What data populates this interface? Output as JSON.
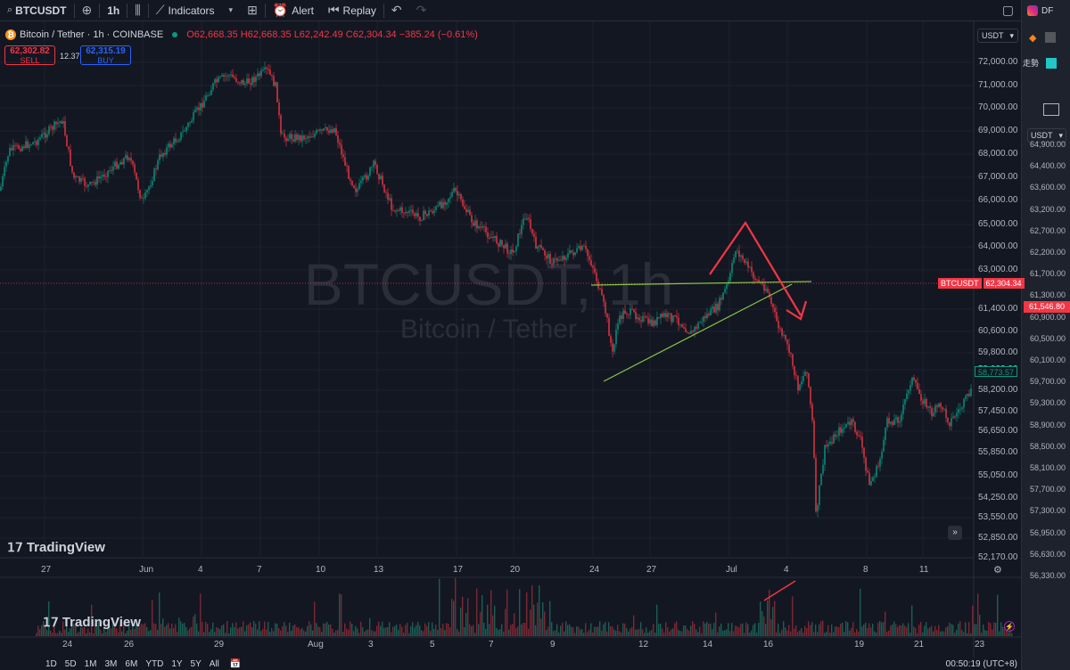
{
  "toolbar": {
    "symbol": "BTCUSDT",
    "interval": "1h",
    "indicators": "Indicators",
    "alert": "Alert",
    "replay": "Replay"
  },
  "legend": {
    "title": "Bitcoin / Tether · 1h · COINBASE",
    "ohlc": "O62,668.35 H62,668.35 L62,242.49 C62,304.34 −385.24 (−0.61%)"
  },
  "trade": {
    "sell_price": "62,302.82",
    "sell_label": "SELL",
    "spread": "12.37",
    "buy_price": "62,315.19",
    "buy_label": "BUY"
  },
  "watermark": {
    "symbol": "BTCUSDT, 1h",
    "name": "Bitcoin / Tether"
  },
  "currency": "USDT",
  "price_axis": [
    "72,000.00",
    "71,000.00",
    "70,000.00",
    "69,000.00",
    "68,000.00",
    "67,000.00",
    "66,000.00",
    "65,000.00",
    "64,000.00",
    "63,000.00",
    "61,400.00",
    "60,600.00",
    "59,800.00",
    "59,000.00",
    "58,200.00",
    "57,450.00",
    "56,650.00",
    "55,850.00",
    "55,050.00",
    "54,250.00",
    "53,550.00",
    "52,850.00",
    "52,170.00"
  ],
  "last_price": {
    "symbol": "BTCUSDT",
    "value": "62,304.34"
  },
  "crosshair_price": "58,773.57",
  "date_axis": [
    "27",
    "Jun",
    "4",
    "7",
    "10",
    "13",
    "17",
    "20",
    "24",
    "27",
    "Jul",
    "4",
    "8",
    "11"
  ],
  "brand": "TradingView",
  "lower_axis": [
    "24",
    "26",
    "29",
    "Aug",
    "3",
    "5",
    "7",
    "9",
    "12",
    "14",
    "16",
    "19",
    "21",
    "23"
  ],
  "lower_currency": "USDT",
  "lower_price_axis": [
    "64,900.00",
    "64,400.00",
    "63,600.00",
    "63,200.00",
    "62,700.00",
    "62,200.00",
    "61,700.00",
    "61,300.00",
    "60,900.00",
    "60,500.00",
    "60,100.00",
    "59,700.00",
    "59,300.00",
    "58,900.00",
    "58,500.00",
    "58,100.00",
    "57,700.00",
    "57,300.00",
    "56,950.00",
    "56,630.00",
    "56,330.00"
  ],
  "lower_last_price": "61,546.80",
  "timeframes": [
    "1D",
    "5D",
    "1M",
    "3M",
    "6M",
    "YTD",
    "1Y",
    "5Y",
    "All"
  ],
  "clock": "00:50:19 (UTC+8)",
  "side_text": [
    "DF",
    "走勢"
  ]
}
